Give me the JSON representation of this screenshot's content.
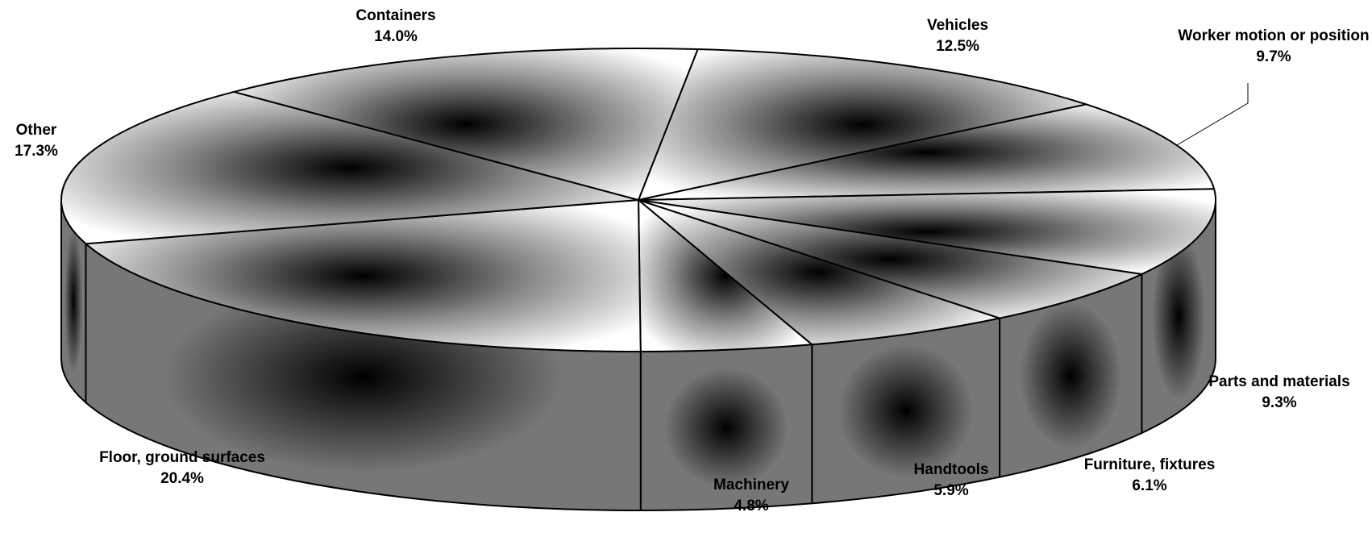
{
  "chart_data": {
    "type": "pie3d",
    "categories": [
      "Vehicles",
      "Worker motion or position",
      "Parts and materials",
      "Furniture, fixtures",
      "Handtools",
      "Machinery",
      "Floor, ground surfaces",
      "Other",
      "Containers"
    ],
    "values": [
      12.5,
      9.7,
      9.3,
      6.1,
      5.9,
      4.8,
      20.4,
      17.3,
      14.0
    ],
    "value_labels": [
      "12.5%",
      "9.7%",
      "9.3%",
      "6.1%",
      "5.9%",
      "4.8%",
      "20.4%",
      "17.3%",
      "14.0%"
    ]
  }
}
